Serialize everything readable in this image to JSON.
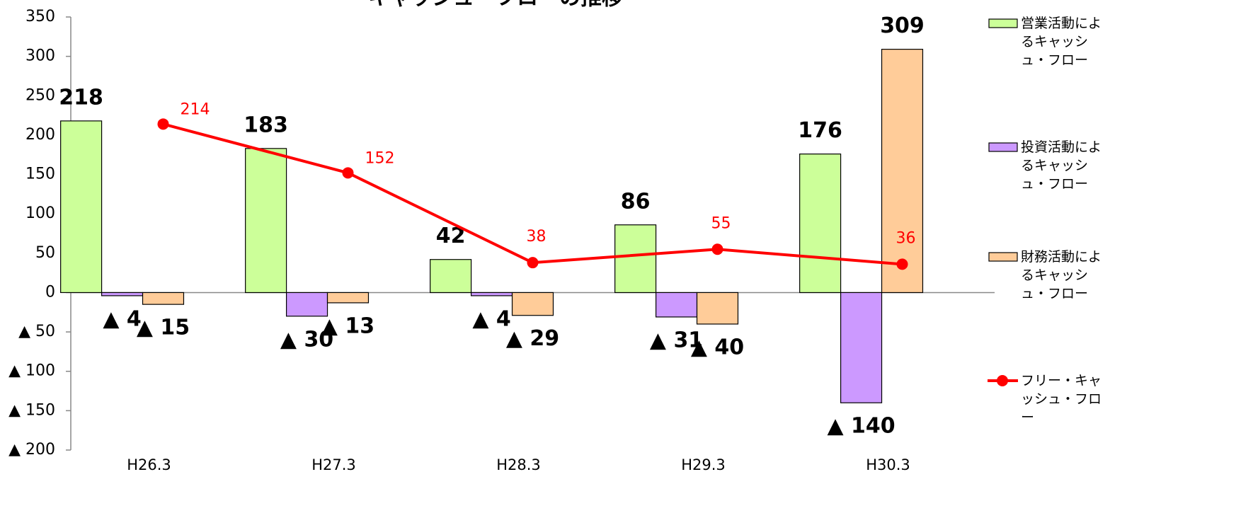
{
  "chart_data": {
    "type": "bar",
    "title": "キャッシュ・フローの推移",
    "categories": [
      "H26.3",
      "H27.3",
      "H28.3",
      "H29.3",
      "H30.3"
    ],
    "series": [
      {
        "name": "営業活動によるキャッシュ・フロー",
        "type": "bar",
        "color": "#ccff99",
        "values": [
          218,
          183,
          42,
          86,
          176
        ]
      },
      {
        "name": "投資活動によるキャッシュ・フロー",
        "type": "bar",
        "color": "#cc99ff",
        "values": [
          -4,
          -30,
          -4,
          -31,
          -140
        ],
        "value_labels": [
          "▲ 4",
          "▲ 30",
          "▲ 4",
          "▲ 31",
          "▲ 140"
        ]
      },
      {
        "name": "財務活動によるキャッシュ・フロー",
        "type": "bar",
        "color": "#ffcc99",
        "values": [
          -15,
          -13,
          -29,
          -40,
          309
        ],
        "value_labels": [
          "▲ 15",
          "▲ 13",
          "▲ 29",
          "▲ 40",
          "309"
        ]
      },
      {
        "name": "フリー・キャッシュ・フロー",
        "type": "line",
        "color": "#ff0000",
        "values": [
          214,
          152,
          38,
          55,
          36
        ]
      }
    ],
    "ylim": [
      -200,
      350
    ],
    "yticks": [
      {
        "value": -200,
        "label": "▲ 200"
      },
      {
        "value": -150,
        "label": "▲ 150"
      },
      {
        "value": -100,
        "label": "▲ 100"
      },
      {
        "value": -50,
        "label": "▲ 50"
      },
      0,
      50,
      100,
      150,
      200,
      250,
      300,
      350
    ],
    "legend": "right"
  }
}
